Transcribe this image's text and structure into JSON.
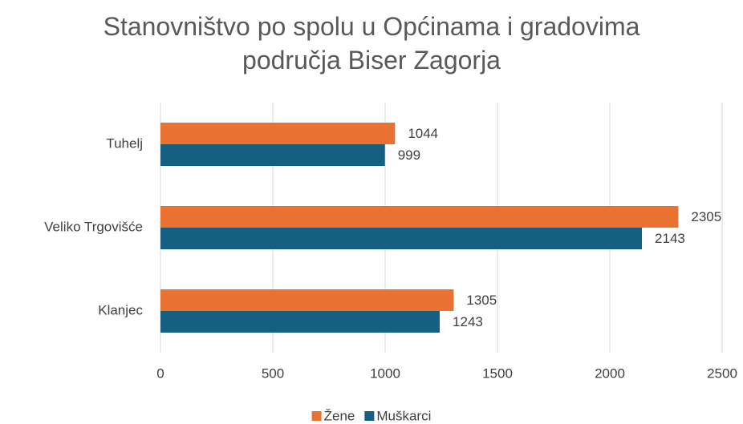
{
  "chart_data": {
    "type": "bar",
    "orientation": "horizontal",
    "title": "Stanovništvo po spolu u Općinama i gradovima područja Biser Zagorja",
    "categories": [
      "Tuhelj",
      "Veliko Trgovišće",
      "Klanjec"
    ],
    "series": [
      {
        "name": "Žene",
        "color": "#e97132",
        "values": [
          1044,
          2305,
          1305
        ]
      },
      {
        "name": "Muškarci",
        "color": "#156082",
        "values": [
          999,
          2143,
          1243
        ]
      }
    ],
    "xlim": [
      0,
      2500
    ],
    "xticks": [
      0,
      500,
      1000,
      1500,
      2000,
      2500
    ],
    "grid": true,
    "data_labels": true,
    "legend": "bottom"
  }
}
